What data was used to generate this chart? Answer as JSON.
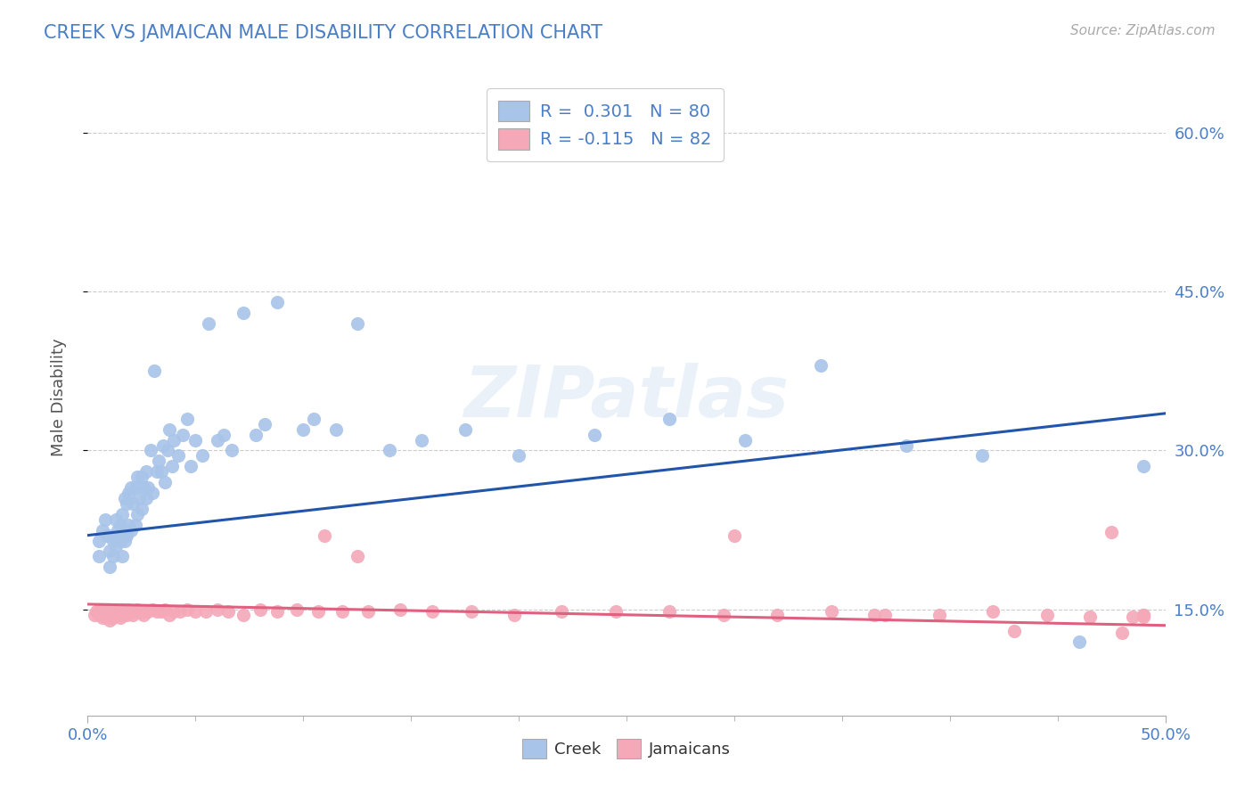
{
  "title": "CREEK VS JAMAICAN MALE DISABILITY CORRELATION CHART",
  "source": "Source: ZipAtlas.com",
  "ylabel": "Male Disability",
  "xlim": [
    0.0,
    0.5
  ],
  "ylim": [
    0.05,
    0.65
  ],
  "yticks": [
    0.15,
    0.3,
    0.45,
    0.6
  ],
  "ytick_labels": [
    "15.0%",
    "30.0%",
    "45.0%",
    "60.0%"
  ],
  "xtick_labels": [
    "0.0%",
    "50.0%"
  ],
  "creek_color": "#a8c4e8",
  "jamaican_color": "#f4a8b8",
  "creek_line_color": "#2255aa",
  "jamaican_line_color": "#e06080",
  "watermark": "ZIPatlas",
  "creek_x": [
    0.005,
    0.005,
    0.007,
    0.008,
    0.009,
    0.01,
    0.01,
    0.01,
    0.012,
    0.012,
    0.013,
    0.013,
    0.014,
    0.015,
    0.015,
    0.016,
    0.016,
    0.016,
    0.017,
    0.017,
    0.018,
    0.018,
    0.019,
    0.019,
    0.02,
    0.02,
    0.021,
    0.022,
    0.022,
    0.023,
    0.023,
    0.024,
    0.025,
    0.025,
    0.026,
    0.027,
    0.027,
    0.028,
    0.029,
    0.03,
    0.031,
    0.032,
    0.033,
    0.034,
    0.035,
    0.036,
    0.037,
    0.038,
    0.039,
    0.04,
    0.042,
    0.044,
    0.046,
    0.048,
    0.05,
    0.053,
    0.056,
    0.06,
    0.063,
    0.067,
    0.072,
    0.078,
    0.082,
    0.088,
    0.1,
    0.105,
    0.115,
    0.125,
    0.14,
    0.155,
    0.175,
    0.2,
    0.235,
    0.27,
    0.305,
    0.34,
    0.38,
    0.415,
    0.46,
    0.49
  ],
  "creek_y": [
    0.2,
    0.215,
    0.225,
    0.235,
    0.22,
    0.19,
    0.205,
    0.22,
    0.2,
    0.215,
    0.21,
    0.235,
    0.225,
    0.215,
    0.23,
    0.2,
    0.22,
    0.24,
    0.215,
    0.255,
    0.22,
    0.25,
    0.23,
    0.26,
    0.225,
    0.265,
    0.25,
    0.23,
    0.265,
    0.24,
    0.275,
    0.255,
    0.245,
    0.275,
    0.265,
    0.255,
    0.28,
    0.265,
    0.3,
    0.26,
    0.375,
    0.28,
    0.29,
    0.28,
    0.305,
    0.27,
    0.3,
    0.32,
    0.285,
    0.31,
    0.295,
    0.315,
    0.33,
    0.285,
    0.31,
    0.295,
    0.42,
    0.31,
    0.315,
    0.3,
    0.43,
    0.315,
    0.325,
    0.44,
    0.32,
    0.33,
    0.32,
    0.42,
    0.3,
    0.31,
    0.32,
    0.295,
    0.315,
    0.33,
    0.31,
    0.38,
    0.305,
    0.295,
    0.12,
    0.285
  ],
  "jamaican_x": [
    0.003,
    0.004,
    0.005,
    0.005,
    0.006,
    0.006,
    0.007,
    0.007,
    0.008,
    0.008,
    0.009,
    0.009,
    0.01,
    0.01,
    0.01,
    0.011,
    0.011,
    0.012,
    0.012,
    0.013,
    0.013,
    0.014,
    0.015,
    0.015,
    0.016,
    0.016,
    0.017,
    0.018,
    0.019,
    0.02,
    0.021,
    0.022,
    0.023,
    0.024,
    0.025,
    0.026,
    0.028,
    0.03,
    0.032,
    0.034,
    0.036,
    0.038,
    0.04,
    0.043,
    0.046,
    0.05,
    0.055,
    0.06,
    0.065,
    0.072,
    0.08,
    0.088,
    0.097,
    0.107,
    0.118,
    0.13,
    0.145,
    0.16,
    0.178,
    0.198,
    0.22,
    0.245,
    0.27,
    0.295,
    0.32,
    0.345,
    0.37,
    0.395,
    0.42,
    0.445,
    0.465,
    0.475,
    0.485,
    0.49,
    0.49,
    0.49,
    0.11,
    0.125,
    0.3,
    0.365,
    0.43,
    0.48
  ],
  "jamaican_y": [
    0.145,
    0.148,
    0.15,
    0.145,
    0.145,
    0.148,
    0.142,
    0.15,
    0.143,
    0.148,
    0.145,
    0.15,
    0.14,
    0.145,
    0.15,
    0.143,
    0.148,
    0.142,
    0.147,
    0.145,
    0.15,
    0.145,
    0.142,
    0.148,
    0.145,
    0.15,
    0.148,
    0.145,
    0.15,
    0.148,
    0.145,
    0.148,
    0.15,
    0.148,
    0.147,
    0.145,
    0.148,
    0.15,
    0.148,
    0.148,
    0.15,
    0.145,
    0.148,
    0.148,
    0.15,
    0.148,
    0.148,
    0.15,
    0.148,
    0.145,
    0.15,
    0.148,
    0.15,
    0.148,
    0.148,
    0.148,
    0.15,
    0.148,
    0.148,
    0.145,
    0.148,
    0.148,
    0.148,
    0.145,
    0.145,
    0.148,
    0.145,
    0.145,
    0.148,
    0.145,
    0.143,
    0.223,
    0.143,
    0.143,
    0.145,
    0.145,
    0.22,
    0.2,
    0.22,
    0.145,
    0.13,
    0.128
  ]
}
